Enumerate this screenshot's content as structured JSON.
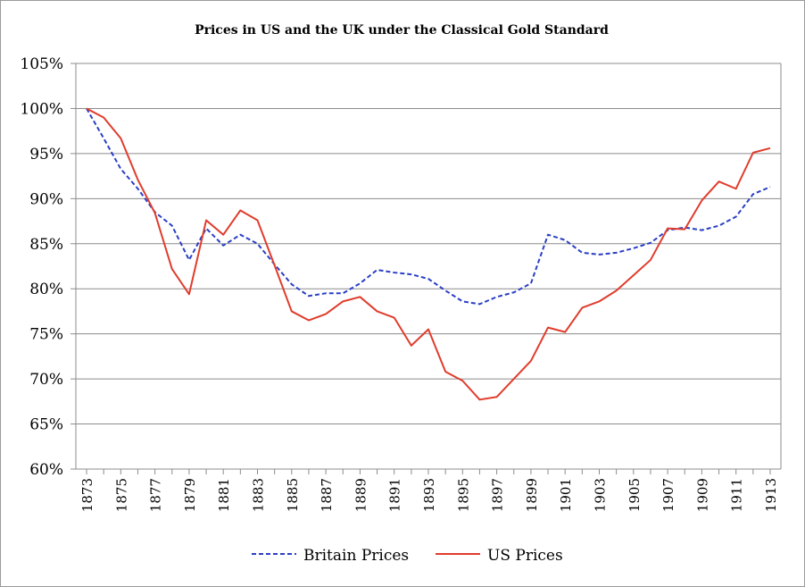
{
  "chart_data": {
    "type": "line",
    "title": "Prices in US and the UK under the Classical Gold Standard",
    "xlabel": "",
    "ylabel": "",
    "ylim": [
      60,
      105
    ],
    "y_ticks": [
      "60%",
      "65%",
      "70%",
      "75%",
      "80%",
      "85%",
      "90%",
      "95%",
      "100%",
      "105%"
    ],
    "x": [
      1873,
      1874,
      1875,
      1876,
      1877,
      1878,
      1879,
      1880,
      1881,
      1882,
      1883,
      1884,
      1885,
      1886,
      1887,
      1888,
      1889,
      1890,
      1891,
      1892,
      1893,
      1894,
      1895,
      1896,
      1897,
      1898,
      1899,
      1900,
      1901,
      1902,
      1903,
      1904,
      1905,
      1906,
      1907,
      1908,
      1909,
      1910,
      1911,
      1912,
      1913
    ],
    "x_tick_labels": [
      "1873",
      "1875",
      "1877",
      "1879",
      "1881",
      "1883",
      "1885",
      "1887",
      "1889",
      "1891",
      "1893",
      "1895",
      "1897",
      "1899",
      "1901",
      "1903",
      "1905",
      "1907",
      "1909",
      "1911",
      "1913"
    ],
    "grid": true,
    "legend_position": "bottom",
    "series": [
      {
        "name": "Britain Prices",
        "color": "#2a3fc6",
        "style": "dashed",
        "values": [
          100,
          96.7,
          93.3,
          91.1,
          88.5,
          87.0,
          83.2,
          86.7,
          84.8,
          86.0,
          85.0,
          82.7,
          80.5,
          79.2,
          79.5,
          79.5,
          80.6,
          82.1,
          81.8,
          81.6,
          81.1,
          79.8,
          78.6,
          78.3,
          79.1,
          79.6,
          80.6,
          86.0,
          85.4,
          84.0,
          83.8,
          84.0,
          84.5,
          85.1,
          86.5,
          86.8,
          86.5,
          87.0,
          88.0,
          90.5,
          91.3
        ]
      },
      {
        "name": "US Prices",
        "color": "#e03c2c",
        "style": "solid",
        "values": [
          100,
          99.0,
          96.7,
          92.1,
          88.4,
          82.2,
          79.4,
          87.6,
          86.0,
          88.7,
          87.6,
          82.6,
          77.5,
          76.5,
          77.2,
          78.6,
          79.1,
          77.5,
          76.8,
          73.7,
          75.5,
          70.8,
          69.8,
          67.7,
          68.0,
          70.0,
          72.0,
          75.7,
          75.2,
          77.9,
          78.6,
          79.8,
          81.5,
          83.2,
          86.7,
          86.6,
          89.8,
          91.9,
          91.1,
          95.1,
          95.6
        ]
      }
    ]
  }
}
